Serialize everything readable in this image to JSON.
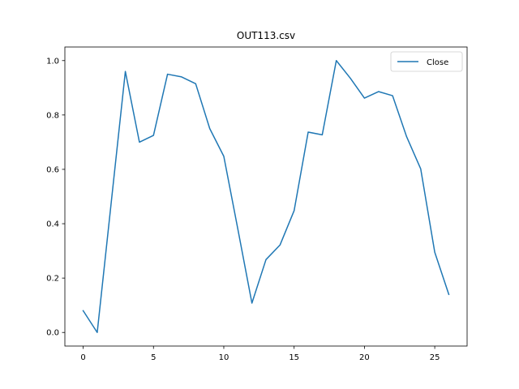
{
  "chart_data": {
    "type": "line",
    "title": "OUT113.csv",
    "xlabel": "",
    "ylabel": "",
    "xlim": [
      -1.3,
      27.3
    ],
    "ylim": [
      -0.05,
      1.05
    ],
    "x_ticks": [
      0,
      5,
      10,
      15,
      20,
      25
    ],
    "x_tick_labels": [
      "0",
      "5",
      "10",
      "15",
      "20",
      "25"
    ],
    "y_ticks": [
      0.0,
      0.2,
      0.4,
      0.6,
      0.8,
      1.0
    ],
    "y_tick_labels": [
      "0.0",
      "0.2",
      "0.4",
      "0.6",
      "0.8",
      "1.0"
    ],
    "grid": false,
    "legend_position": "top-right",
    "series": [
      {
        "name": "Close",
        "color": "#1f77b4",
        "x": [
          0,
          1,
          2,
          3,
          4,
          5,
          6,
          7,
          8,
          9,
          10,
          11,
          12,
          13,
          14,
          15,
          16,
          17,
          18,
          19,
          20,
          21,
          22,
          23,
          24,
          25,
          26
        ],
        "values": [
          0.08,
          0.0,
          0.48,
          0.96,
          0.7,
          0.725,
          0.95,
          0.94,
          0.915,
          0.75,
          0.648,
          0.38,
          0.108,
          0.268,
          0.322,
          0.448,
          0.737,
          0.727,
          1.0,
          0.935,
          0.862,
          0.886,
          0.871,
          0.72,
          0.602,
          0.295,
          0.14
        ]
      }
    ]
  }
}
